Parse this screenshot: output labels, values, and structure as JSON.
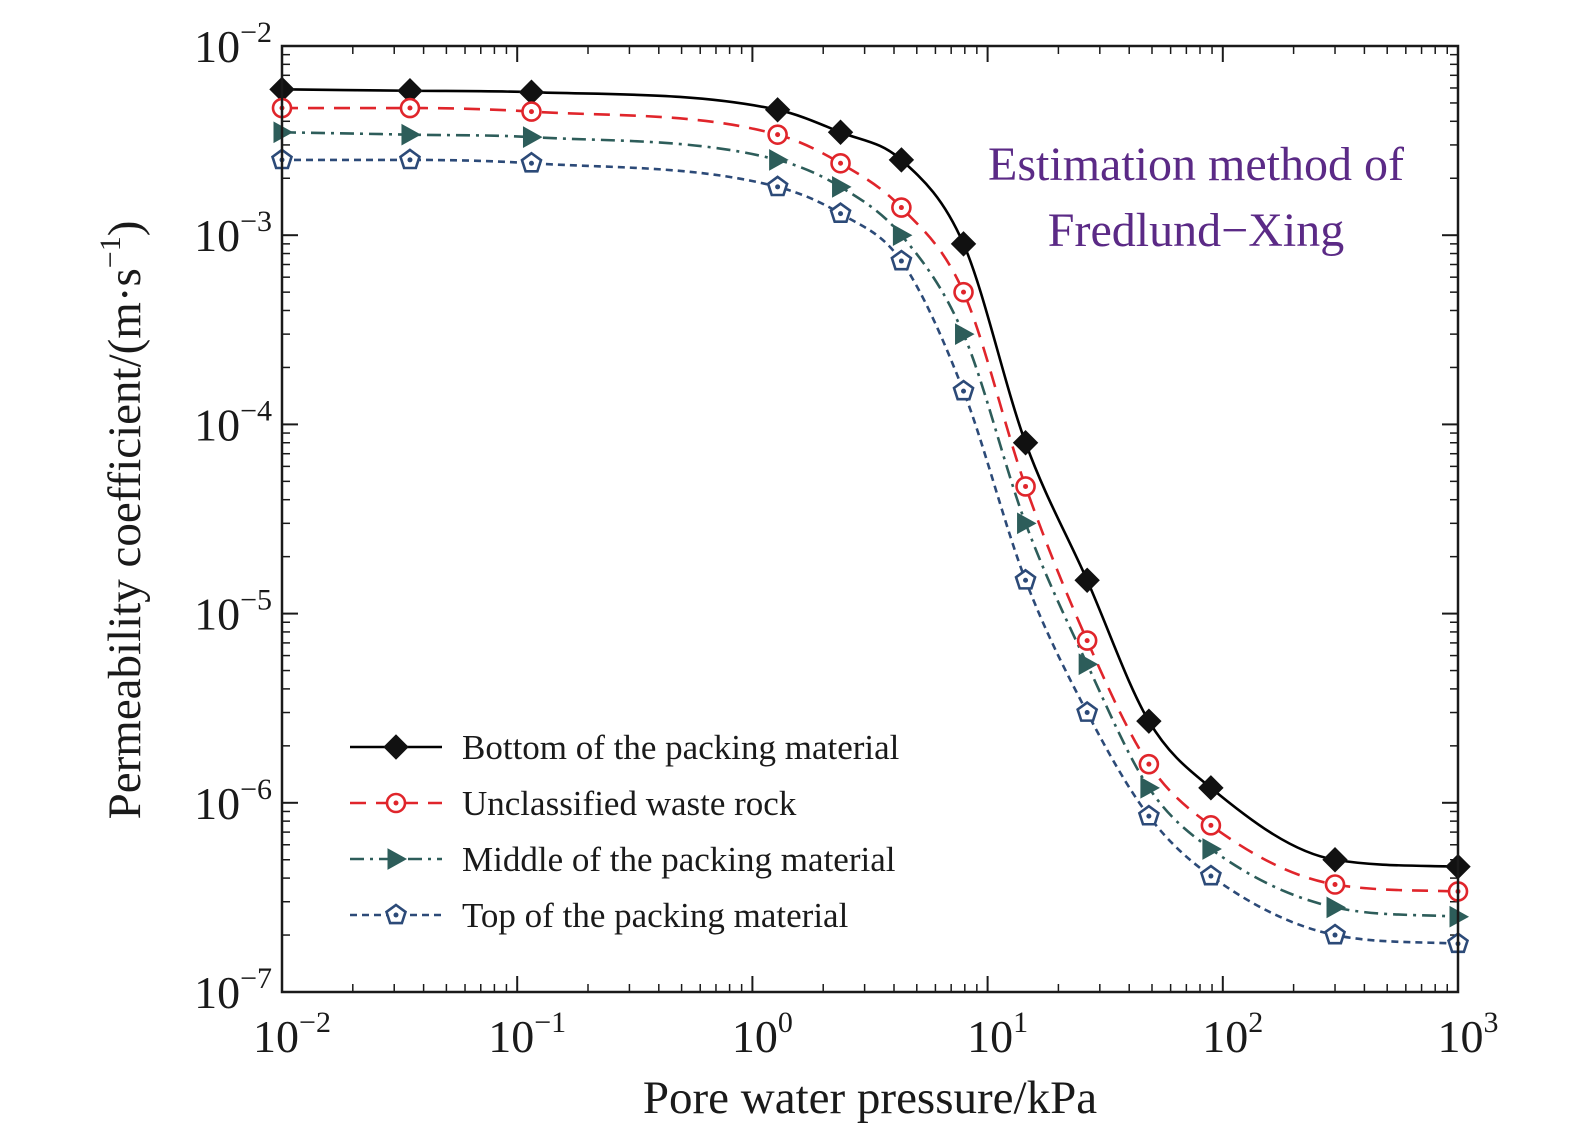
{
  "chart_data": {
    "type": "line",
    "xlabel": "Pore water pressure/kPa",
    "ylabel": "Permeability coefficient/(m·s",
    "ylabel_exponent": "−1",
    "ylabel_close": ")",
    "x_scale": "log",
    "y_scale": "log",
    "xlim": [
      0.01,
      1000
    ],
    "ylim": [
      1e-07,
      0.01
    ],
    "x_ticks": [
      {
        "base": "10",
        "exp": "−2",
        "value": 0.01
      },
      {
        "base": "10",
        "exp": "−1",
        "value": 0.1
      },
      {
        "base": "10",
        "exp": "0",
        "value": 1
      },
      {
        "base": "10",
        "exp": "1",
        "value": 10
      },
      {
        "base": "10",
        "exp": "2",
        "value": 100
      },
      {
        "base": "10",
        "exp": "3",
        "value": 1000
      }
    ],
    "y_ticks": [
      {
        "base": "10",
        "exp": "−2",
        "value": 0.01
      },
      {
        "base": "10",
        "exp": "−3",
        "value": 0.001
      },
      {
        "base": "10",
        "exp": "−4",
        "value": 0.0001
      },
      {
        "base": "10",
        "exp": "−5",
        "value": 1e-05
      },
      {
        "base": "10",
        "exp": "−6",
        "value": 1e-06
      },
      {
        "base": "10",
        "exp": "−7",
        "value": 1e-07
      }
    ],
    "grid": false,
    "legend_position": "bottom-left",
    "annotation": {
      "lines": [
        "Estimation method of",
        "Fredlund−Xing"
      ],
      "color": "#5b2a86"
    },
    "x": [
      0.01,
      0.035,
      0.115,
      1.28,
      2.37,
      4.3,
      7.9,
      14.5,
      26.5,
      48.5,
      89,
      300,
      1000
    ],
    "series": [
      {
        "name": "Bottom of the packing material",
        "color": "#000000",
        "dash": "solid",
        "marker": "diamond",
        "values": [
          0.0059,
          0.0058,
          0.0057,
          0.0046,
          0.0035,
          0.0025,
          0.0009,
          8e-05,
          1.5e-05,
          2.7e-06,
          1.2e-06,
          5e-07,
          4.6e-07
        ]
      },
      {
        "name": "Unclassified waste rock",
        "color": "#e0252b",
        "dash": "dashed",
        "marker": "circle-dot",
        "values": [
          0.0047,
          0.0047,
          0.0045,
          0.0034,
          0.0024,
          0.0014,
          0.0005,
          4.7e-05,
          7.2e-06,
          1.6e-06,
          7.6e-07,
          3.7e-07,
          3.4e-07
        ]
      },
      {
        "name": "Middle of the packing material",
        "color": "#2d5d5a",
        "dash": "dash-dot",
        "marker": "triangle-right",
        "values": [
          0.0035,
          0.0034,
          0.0033,
          0.0025,
          0.0018,
          0.001,
          0.0003,
          3e-05,
          5.4e-06,
          1.2e-06,
          5.7e-07,
          2.8e-07,
          2.5e-07
        ]
      },
      {
        "name": "Top of the packing material",
        "color": "#2c4a78",
        "dash": "dotted",
        "marker": "pentagon",
        "values": [
          0.0025,
          0.0025,
          0.0024,
          0.0018,
          0.0013,
          0.00073,
          0.00015,
          1.5e-05,
          3e-06,
          8.5e-07,
          4.1e-07,
          2e-07,
          1.8e-07
        ]
      }
    ]
  }
}
